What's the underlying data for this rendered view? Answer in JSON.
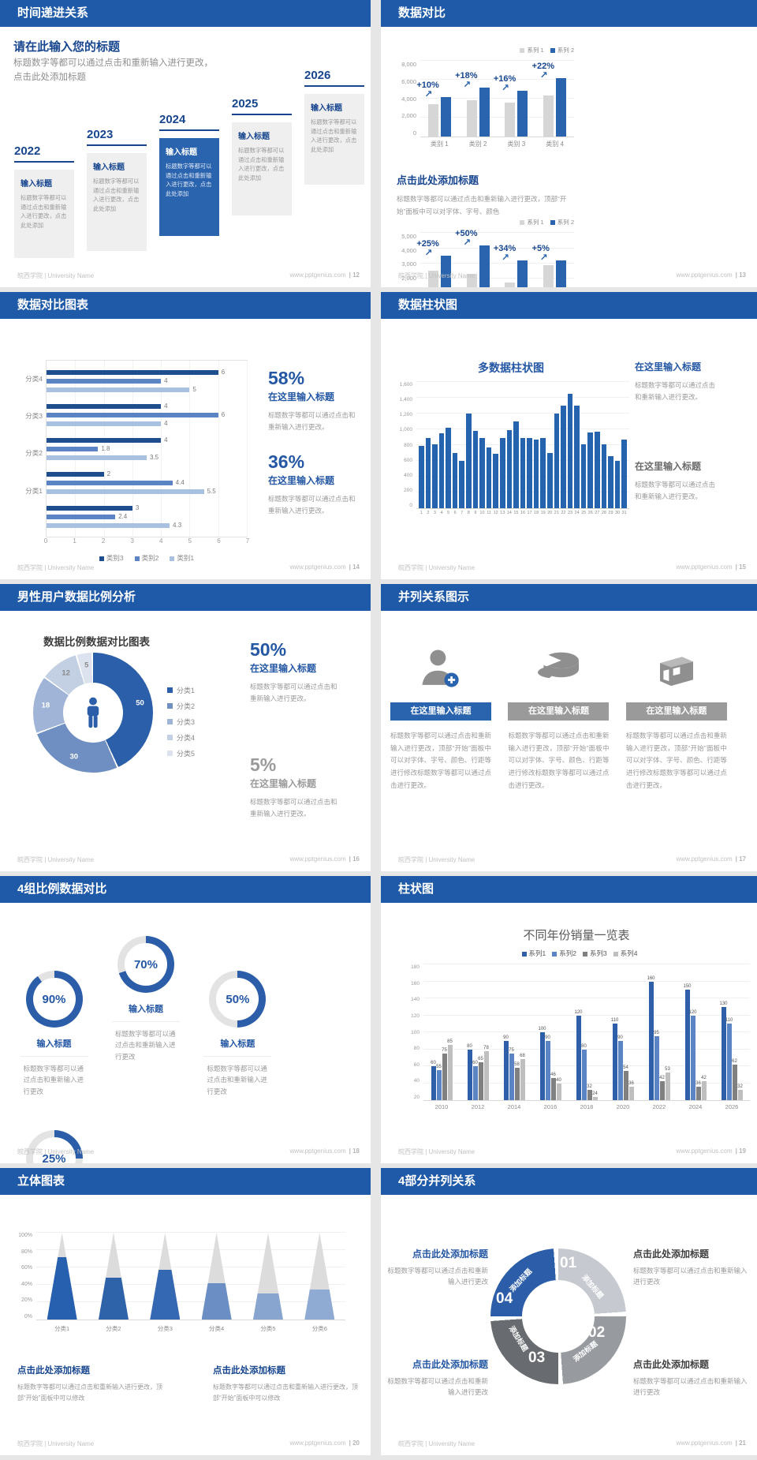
{
  "footer": {
    "university": "皖西学院 | University Name",
    "site": "www.pptgenius.com"
  },
  "slides": {
    "s12": {
      "page": "| 12",
      "title": "时间递进关系",
      "heading": "请在此输入您的标题",
      "intro": "标题数字等都可以通过点击和重新输入进行更改，点击此处添加标题",
      "years": [
        "2022",
        "2023",
        "2024",
        "2025",
        "2026"
      ],
      "card_title": "输入标题",
      "card_body": "标题数字等都可以通过点击和重新输入进行更改，点击此处添加"
    },
    "s13": {
      "page": "| 13",
      "title": "数据对比",
      "heading": "点击此处添加标题",
      "body": "标题数字等都可以通过点击和重新输入进行更改，顶部“开始”面板中可以对字体、字号、颜色"
    },
    "s14": {
      "page": "| 14",
      "title": "数据对比图表",
      "stats": [
        {
          "pct": "58%",
          "label": "在这里输入标题",
          "body": "标题数字等都可以通过点击和重新输入进行更改。"
        },
        {
          "pct": "36%",
          "label": "在这里输入标题",
          "body": "标题数字等都可以通过点击和重新输入进行更改。"
        }
      ]
    },
    "s15": {
      "page": "| 15",
      "title": "数据柱状图",
      "blocks": [
        {
          "label": "在这里输入标题",
          "body": "标题数字等都可以通过点击和重新输入进行更改。"
        },
        {
          "label": "在这里输入标题",
          "body": "标题数字等都可以通过点击和重新输入进行更改。"
        }
      ]
    },
    "s16": {
      "page": "| 16",
      "title": "男性用户数据比例分析",
      "stats": [
        {
          "pct": "50%",
          "label": "在这里输入标题",
          "body": "标题数字等都可以通过点击和重新输入进行更改。"
        },
        {
          "pct": "5%",
          "label": "在这里输入标题",
          "body": "标题数字等都可以通过点击和重新输入进行更改。"
        }
      ]
    },
    "s17": {
      "page": "| 17",
      "title": "并列关系图示",
      "col_heading": "在这里输入标题",
      "col_body": "标题数字等都可以通过点击和重新输入进行更改，顶部“开始”面板中可以对字体、字号、颜色、行距等进行修改标题数字等都可以通过点击进行更改。",
      "icons": [
        "person-plus-icon",
        "pie-3d-icon",
        "building-icon"
      ]
    },
    "s18": {
      "page": "| 18",
      "title": "4组比例数据对比",
      "label": "输入标题",
      "body": "标题数字等都可以通过点击和重新输入进行更改"
    },
    "s19": {
      "page": "| 19",
      "title": "柱状图"
    },
    "s20": {
      "page": "| 20",
      "title": "立体图表",
      "heading": "点击此处添加标题",
      "body": "标题数字等都可以通过点击和重新输入进行更改，顶部“开始”面板中可以修改"
    },
    "s21": {
      "page": "| 21",
      "title": "4部分并列关系",
      "heading": "点击此处添加标题",
      "body": "标题数字等都可以通过点击和重新输入进行更改",
      "segment_label": "添加标题"
    }
  },
  "chart_data": [
    {
      "id": "s13a",
      "type": "bar",
      "legend": [
        "系列 1",
        "系列 2"
      ],
      "categories": [
        "类别 1",
        "类别 2",
        "类别 3",
        "类别 4"
      ],
      "series": [
        {
          "name": "系列 1",
          "color": "#d6d6d6",
          "values": [
            3400,
            3800,
            3600,
            4300
          ]
        },
        {
          "name": "系列 2",
          "color": "#2b64ae",
          "values": [
            4200,
            5200,
            4800,
            6200
          ]
        }
      ],
      "annotations": [
        "+10%",
        "+18%",
        "+16%",
        "+22%"
      ],
      "ylim": [
        0,
        8000
      ],
      "yticks": [
        "8,000",
        "6,000",
        "4,000",
        "2,000",
        "0"
      ]
    },
    {
      "id": "s13b",
      "type": "bar",
      "legend": [
        "系列 1",
        "系列 2"
      ],
      "categories": [
        "类别 1",
        "类别 2",
        "类别 3",
        "类别 4"
      ],
      "series": [
        {
          "name": "系列 1",
          "color": "#d6d6d6",
          "values": [
            2500,
            2300,
            1750,
            2900
          ]
        },
        {
          "name": "系列 2",
          "color": "#2b64ae",
          "values": [
            3500,
            4200,
            3200,
            3200
          ]
        }
      ],
      "annotations": [
        "+25%",
        "+50%",
        "+34%",
        "+5%"
      ],
      "ylim": [
        0,
        5000
      ],
      "yticks": [
        "5,000",
        "4,000",
        "3,000",
        "2,000",
        "1,000",
        "0"
      ]
    },
    {
      "id": "s14",
      "type": "hbar",
      "legend": [
        "类别3",
        "类别2",
        "类别1"
      ],
      "categories": [
        "分类4",
        "分类3",
        "分类2",
        "分类1",
        ""
      ],
      "series": [
        {
          "name": "类别3",
          "color": "#1f4e8f",
          "values": [
            6,
            4,
            4,
            2,
            3
          ]
        },
        {
          "name": "类别2",
          "color": "#5b84c4",
          "values": [
            4,
            6,
            1.8,
            4.4,
            2.4
          ]
        },
        {
          "name": "类别1",
          "color": "#a9c1e0",
          "values": [
            5,
            4,
            3.5,
            5.5,
            4.3
          ]
        }
      ],
      "xlim": [
        0,
        7
      ],
      "xticks": [
        "0",
        "1",
        "2",
        "3",
        "4",
        "5",
        "6",
        "7"
      ]
    },
    {
      "id": "s15",
      "type": "bar",
      "title": "多数据柱状图",
      "color": "#2563ae",
      "x": [
        1,
        2,
        3,
        4,
        5,
        6,
        7,
        8,
        9,
        10,
        11,
        12,
        13,
        14,
        15,
        16,
        17,
        18,
        19,
        20,
        21,
        22,
        23,
        24,
        25,
        26,
        27,
        28,
        29,
        30,
        31
      ],
      "values": [
        790,
        890,
        810,
        950,
        1020,
        700,
        600,
        1200,
        980,
        890,
        770,
        690,
        890,
        990,
        1100,
        890,
        890,
        870,
        890,
        700,
        1200,
        1300,
        1450,
        1300,
        810,
        960,
        970,
        810,
        660,
        600,
        870
      ],
      "ylim": [
        0,
        1600
      ],
      "yticks": [
        "1,600",
        "1,400",
        "1,200",
        "1,000",
        "800",
        "600",
        "400",
        "200",
        "0"
      ]
    },
    {
      "id": "s16",
      "type": "donut",
      "title": "数据比例数据对比图表",
      "labels": [
        "分类1",
        "分类2",
        "分类3",
        "分类4",
        "分类5"
      ],
      "values": [
        50,
        30,
        18,
        12,
        5
      ],
      "colors": [
        "#2b5fa9",
        "#6f8fc2",
        "#9fb4d6",
        "#c3cfe3",
        "#dde3ee"
      ],
      "center_icon": "male-figure-icon"
    },
    {
      "id": "s18",
      "type": "progress-rings",
      "values": [
        90,
        70,
        50,
        25
      ],
      "color": "#2b5da8",
      "track": "#e3e3e3"
    },
    {
      "id": "s19",
      "type": "bar",
      "title": "不同年份销量一览表",
      "legend": [
        "系列1",
        "系列2",
        "系列3",
        "系列4"
      ],
      "categories": [
        "2010",
        "2012",
        "2014",
        "2016",
        "2018",
        "2020",
        "2022",
        "2024",
        "2026"
      ],
      "series": [
        {
          "name": "系列1",
          "color": "#2e5fa8",
          "values": [
            60,
            80,
            90,
            100,
            120,
            110,
            160,
            150,
            130
          ]
        },
        {
          "name": "系列2",
          "color": "#5b84c4",
          "values": [
            55,
            60,
            75,
            90,
            80,
            90,
            95,
            120,
            110
          ]
        },
        {
          "name": "系列3",
          "color": "#808080",
          "values": [
            75,
            65,
            58,
            46,
            32,
            54,
            42,
            36,
            62
          ]
        },
        {
          "name": "系列4",
          "color": "#bfbfbf",
          "values": [
            85,
            78,
            68,
            40,
            24,
            36,
            53,
            42,
            32
          ]
        }
      ],
      "ylim": [
        20,
        180
      ],
      "yticks": [
        "180",
        "160",
        "140",
        "120",
        "100",
        "80",
        "60",
        "40",
        "20"
      ],
      "value_labels": true
    },
    {
      "id": "s20",
      "type": "pyramid",
      "categories": [
        "分类1",
        "分类2",
        "分类3",
        "分类4",
        "分类5",
        "分类6"
      ],
      "values": [
        72,
        48,
        57,
        42,
        30,
        35
      ],
      "colors": [
        "#2760ae",
        "#2f63a9",
        "#3568b2",
        "#6b8fc5",
        "#87a5cf",
        "#8fabd3"
      ],
      "ylim": [
        0,
        100
      ],
      "yticks": [
        "100%",
        "80%",
        "60%",
        "40%",
        "20%",
        "0%"
      ]
    },
    {
      "id": "s21",
      "type": "cycle",
      "label": "添加标题",
      "steps": [
        {
          "num": "01",
          "color": "#c6cad0"
        },
        {
          "num": "02",
          "color": "#979ba0"
        },
        {
          "num": "03",
          "color": "#686c70"
        },
        {
          "num": "04",
          "color": "#2b5da8"
        }
      ]
    }
  ]
}
